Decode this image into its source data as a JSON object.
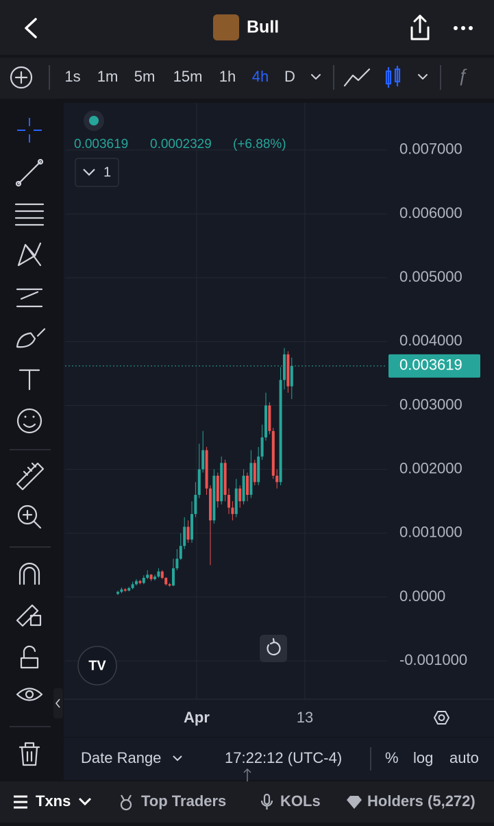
{
  "header": {
    "title": "Bull"
  },
  "toolbar": {
    "intervals": [
      "1s",
      "1m",
      "5m",
      "15m",
      "1h",
      "4h",
      "D"
    ],
    "active_interval": "4h"
  },
  "chart": {
    "legend": {
      "price": "0.003619",
      "change": "0.0002329",
      "change_pct": "(+6.88%)"
    },
    "series_count": "1",
    "ylim": [
      -0.0016,
      0.00774
    ],
    "yticks": [
      {
        "value": 0.007,
        "label": "0.007000"
      },
      {
        "value": 0.006,
        "label": "0.006000"
      },
      {
        "value": 0.005,
        "label": "0.005000"
      },
      {
        "value": 0.004,
        "label": "0.004000"
      },
      {
        "value": 0.003,
        "label": "0.003000"
      },
      {
        "value": 0.002,
        "label": "0.002000"
      },
      {
        "value": 0.001,
        "label": "0.001000"
      },
      {
        "value": 0,
        "label": "0.0000"
      },
      {
        "value": -0.001,
        "label": "-0.001000"
      }
    ],
    "last_price": {
      "value": 0.003619,
      "label": "0.003619"
    },
    "xticks": [
      "Apr",
      "13"
    ],
    "up_color": "#26a69a",
    "down_color": "#ef5350",
    "candles": {
      "open": [
        5e-05,
        8e-05,
        0.00012,
        0.0001,
        0.00014,
        0.0002,
        0.00025,
        0.00022,
        0.0003,
        0.00035,
        0.00028,
        0.00032,
        0.0004,
        0.0003,
        0.0002,
        0.00018,
        0.00045,
        0.0006,
        0.0008,
        0.0011,
        0.0009,
        0.0013,
        0.0016,
        0.002,
        0.0023,
        0.0017,
        0.0012,
        0.0019,
        0.0015,
        0.0021,
        0.0016,
        0.0014,
        0.0013,
        0.0017,
        0.0015,
        0.0019,
        0.0016,
        0.0021,
        0.0018,
        0.0022,
        0.0025,
        0.003,
        0.0026,
        0.0019,
        0.0018,
        0.0034,
        0.0038,
        0.0033
      ],
      "high": [
        0.0001,
        0.00015,
        0.00014,
        0.00016,
        0.00024,
        0.00028,
        0.00027,
        0.00034,
        0.00042,
        0.00036,
        0.00035,
        0.00045,
        0.00042,
        0.00031,
        0.00022,
        0.0006,
        0.00075,
        0.001,
        0.00125,
        0.0012,
        0.0015,
        0.0018,
        0.0024,
        0.0026,
        0.00235,
        0.00175,
        0.002,
        0.00195,
        0.0022,
        0.00215,
        0.0017,
        0.0015,
        0.00185,
        0.00175,
        0.002,
        0.00195,
        0.0023,
        0.00215,
        0.00235,
        0.0027,
        0.0032,
        0.00305,
        0.00265,
        0.002,
        0.0036,
        0.0039,
        0.00385,
        0.00375
      ],
      "low": [
        3e-05,
        6e-05,
        8e-05,
        9e-05,
        0.00012,
        0.00018,
        0.0002,
        0.0002,
        0.00028,
        0.00025,
        0.00026,
        0.0003,
        0.00028,
        0.00018,
        0.00016,
        0.00017,
        0.00042,
        0.00058,
        0.00075,
        0.00085,
        0.00085,
        0.00125,
        0.00155,
        0.00195,
        0.0016,
        0.0005,
        0.00115,
        0.0014,
        0.00145,
        0.0015,
        0.0013,
        0.0012,
        0.00125,
        0.0014,
        0.00145,
        0.0015,
        0.00155,
        0.00175,
        0.00175,
        0.00215,
        0.00245,
        0.00255,
        0.00185,
        0.0017,
        0.00175,
        0.00325,
        0.0032,
        0.0031
      ],
      "close": [
        8e-05,
        0.00012,
        0.0001,
        0.00014,
        0.0002,
        0.00025,
        0.00022,
        0.0003,
        0.00035,
        0.00028,
        0.00032,
        0.0004,
        0.0003,
        0.0002,
        0.00018,
        0.00045,
        0.0006,
        0.0008,
        0.0011,
        0.0009,
        0.0013,
        0.0016,
        0.002,
        0.0023,
        0.0017,
        0.0012,
        0.0019,
        0.0015,
        0.0021,
        0.0016,
        0.0014,
        0.0013,
        0.0017,
        0.0015,
        0.0019,
        0.0016,
        0.0021,
        0.0018,
        0.0022,
        0.0025,
        0.003,
        0.0026,
        0.0019,
        0.0018,
        0.0034,
        0.0038,
        0.0033,
        0.003619
      ]
    }
  },
  "footer": {
    "date_range": "Date Range",
    "time": "17:22:12 (UTC-4)",
    "percent": "%",
    "log": "log",
    "auto": "auto"
  },
  "tabs": [
    "Txns",
    "Top Traders",
    "KOLs",
    "Holders (5,272)"
  ]
}
